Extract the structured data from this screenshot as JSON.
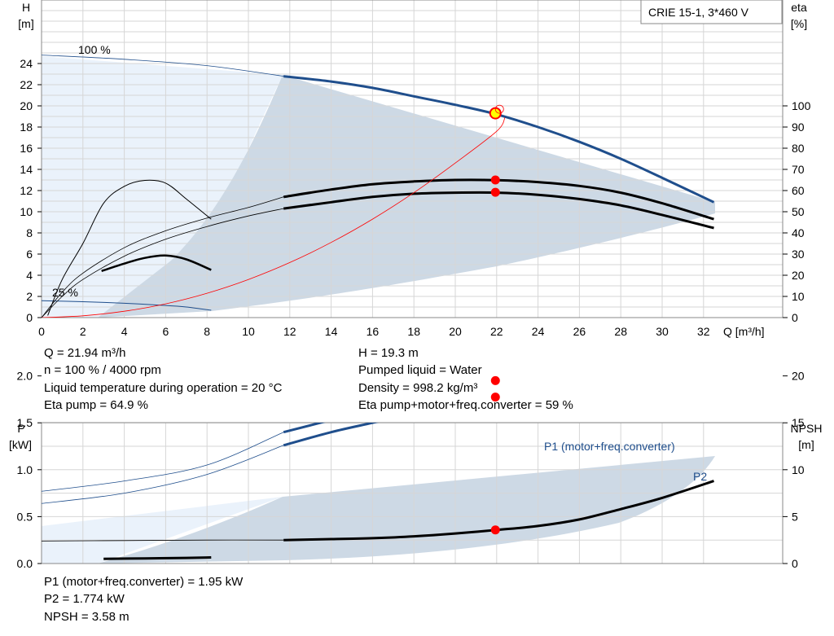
{
  "chart_data": [
    {
      "type": "line",
      "title": "CRIE 15-1, 3*460 V",
      "xlabel": "Q [m³/h]",
      "ylabel_left": {
        "name": "H",
        "unit": "[m]"
      },
      "ylabel_right": {
        "name": "eta",
        "unit": "[%]"
      },
      "xlim": [
        0,
        35
      ],
      "ylim_left": [
        0,
        25
      ],
      "ylim_right": [
        0,
        125
      ],
      "x_ticks": [
        0,
        2,
        4,
        6,
        8,
        10,
        12,
        14,
        16,
        18,
        20,
        22,
        24,
        26,
        28,
        30,
        32
      ],
      "y_ticks_left": [
        0,
        2,
        4,
        6,
        8,
        10,
        12,
        14,
        16,
        18,
        20,
        22,
        24
      ],
      "y_ticks_right": [
        0,
        10,
        20,
        30,
        40,
        50,
        60,
        70,
        80,
        90,
        100
      ],
      "grid": true,
      "curve_labels": {
        "full_speed": "100 %",
        "min_speed": "25 %"
      },
      "series": [
        {
          "name": "100 %",
          "axis": "left",
          "color": "#1f4e8c",
          "thick_from": 11.7,
          "points": [
            [
              0,
              24.8
            ],
            [
              4,
              24.4
            ],
            [
              8,
              23.8
            ],
            [
              11.7,
              22.8
            ],
            [
              14,
              22.3
            ],
            [
              16,
              21.7
            ],
            [
              18,
              20.9
            ],
            [
              20,
              20.1
            ],
            [
              22,
              19.2
            ],
            [
              24,
              18.0
            ],
            [
              26,
              16.6
            ],
            [
              28,
              15.0
            ],
            [
              30,
              13.2
            ],
            [
              32.5,
              10.9
            ]
          ]
        },
        {
          "name": "25 %",
          "axis": "left",
          "color": "#1f4e8c",
          "points": [
            [
              0,
              1.6
            ],
            [
              2,
              1.5
            ],
            [
              4,
              1.35
            ],
            [
              6,
              1.15
            ],
            [
              7,
              1.0
            ],
            [
              8.2,
              0.7
            ]
          ]
        },
        {
          "axis": "right",
          "color": "#000000",
          "thick_from": 11.7,
          "points": [
            [
              0,
              0
            ],
            [
              1,
              12
            ],
            [
              2,
              21
            ],
            [
              4,
              33
            ],
            [
              6,
              41
            ],
            [
              8,
              47
            ],
            [
              10,
              52
            ],
            [
              11.7,
              57
            ],
            [
              14,
              60.5
            ],
            [
              16,
              63
            ],
            [
              18,
              64.3
            ],
            [
              20,
              65
            ],
            [
              22,
              64.9
            ],
            [
              24,
              64
            ],
            [
              26,
              62.2
            ],
            [
              28,
              59
            ],
            [
              30,
              54
            ],
            [
              32.5,
              46.5
            ]
          ]
        },
        {
          "axis": "right",
          "color": "#000000",
          "width": 3,
          "thick_from": 11.7,
          "points": [
            [
              0,
              0
            ],
            [
              1,
              10
            ],
            [
              2,
              18
            ],
            [
              4,
              29
            ],
            [
              6,
              37
            ],
            [
              8,
              43
            ],
            [
              10,
              48
            ],
            [
              11.7,
              51.5
            ],
            [
              14,
              54.5
            ],
            [
              16,
              57
            ],
            [
              18,
              58.5
            ],
            [
              20,
              59
            ],
            [
              22,
              59
            ],
            [
              24,
              58
            ],
            [
              26,
              56
            ],
            [
              28,
              53
            ],
            [
              30,
              48.5
            ],
            [
              32.5,
              42.3
            ]
          ]
        },
        {
          "axis": "right",
          "color": "#000000",
          "points": [
            [
              0.3,
              1
            ],
            [
              1,
              18
            ],
            [
              2,
              35
            ],
            [
              3,
              54
            ],
            [
              4,
              62
            ],
            [
              5,
              64.8
            ],
            [
              6,
              63.5
            ],
            [
              7,
              56
            ],
            [
              8.2,
              46.5
            ]
          ]
        },
        {
          "axis": "right",
          "color": "#000000",
          "width": 2.5,
          "points": [
            [
              2.9,
              22
            ],
            [
              4,
              25.5
            ],
            [
              5,
              28.2
            ],
            [
              6,
              29.3
            ],
            [
              7,
              27.5
            ],
            [
              8.2,
              22.5
            ]
          ]
        },
        {
          "name": "system curve",
          "axis": "left",
          "color": "#ff0000",
          "points": [
            [
              0,
              0
            ],
            [
              2,
              0.17
            ],
            [
              4,
              0.6
            ],
            [
              6,
              1.3
            ],
            [
              8,
              2.3
            ],
            [
              10,
              3.6
            ],
            [
              12,
              5.2
            ],
            [
              14,
              7.1
            ],
            [
              16,
              9.3
            ],
            [
              18,
              11.8
            ],
            [
              20,
              14.6
            ],
            [
              22,
              17.6
            ],
            [
              22.4,
              18.9
            ]
          ]
        }
      ],
      "operating_point": {
        "x": 21.94,
        "y": 19.3
      },
      "eta_markers": [
        65,
        59.2
      ]
    },
    {
      "type": "line",
      "xlabel": "",
      "ylabel_left": {
        "name": "P",
        "unit": "[kW]"
      },
      "ylabel_right": {
        "name": "NPSH",
        "unit": "[m]"
      },
      "xlim": [
        0,
        35
      ],
      "ylim_left": [
        0,
        2.6
      ],
      "ylim_right": [
        0,
        26
      ],
      "y_ticks_left": [
        "0.0",
        "0.5",
        "1.0",
        "1.5",
        "2.0"
      ],
      "y_ticks_right": [
        0,
        5,
        10,
        15,
        20
      ],
      "grid": true,
      "series": [
        {
          "name": "P1 (motor+freq.converter)",
          "axis": "left",
          "color": "#1f4e8c",
          "thick_from": 11.7,
          "points": [
            [
              0,
              0.77
            ],
            [
              4,
              0.88
            ],
            [
              8,
              1.05
            ],
            [
              11.7,
              1.4
            ],
            [
              14,
              1.53
            ],
            [
              16,
              1.64
            ],
            [
              18,
              1.74
            ],
            [
              20,
              1.84
            ],
            [
              22,
              1.93
            ],
            [
              24,
              2.02
            ],
            [
              26,
              2.09
            ],
            [
              28,
              2.15
            ],
            [
              30,
              2.21
            ],
            [
              32.5,
              2.27
            ]
          ]
        },
        {
          "name": "P2",
          "axis": "left",
          "color": "#1f4e8c",
          "thick_from": 11.7,
          "points": [
            [
              0,
              0.64
            ],
            [
              4,
              0.75
            ],
            [
              8,
              0.95
            ],
            [
              11.7,
              1.26
            ],
            [
              14,
              1.4
            ],
            [
              16,
              1.5
            ],
            [
              18,
              1.6
            ],
            [
              20,
              1.69
            ],
            [
              22,
              1.77
            ],
            [
              24,
              1.85
            ],
            [
              26,
              1.91
            ],
            [
              28,
              1.96
            ],
            [
              30,
              2.01
            ],
            [
              32.5,
              2.07
            ]
          ]
        },
        {
          "name": "NPSH",
          "axis": "right",
          "color": "#000000",
          "width": 3,
          "thick_from": 11.7,
          "points": [
            [
              0,
              2.4
            ],
            [
              4,
              2.45
            ],
            [
              8,
              2.5
            ],
            [
              11.7,
              2.5
            ],
            [
              14,
              2.6
            ],
            [
              16,
              2.7
            ],
            [
              18,
              2.9
            ],
            [
              20,
              3.2
            ],
            [
              22,
              3.58
            ],
            [
              24,
              4.0
            ],
            [
              26,
              4.7
            ],
            [
              28,
              5.8
            ],
            [
              30,
              7.0
            ],
            [
              32.5,
              8.8
            ]
          ]
        },
        {
          "axis": "right",
          "color": "#000000",
          "width": 3,
          "points": [
            [
              3,
              0.5
            ],
            [
              5,
              0.55
            ],
            [
              7,
              0.6
            ],
            [
              8.2,
              0.65
            ]
          ]
        }
      ],
      "markers": [
        {
          "axis": "left",
          "x": 21.94,
          "y": 1.95
        },
        {
          "axis": "left",
          "x": 21.94,
          "y": 1.774
        },
        {
          "axis": "right",
          "x": 21.94,
          "y": 3.58
        }
      ]
    }
  ],
  "info_top_left": [
    "Q = 21.94 m³/h",
    "n = 100 % / 4000 rpm",
    "Liquid temperature during operation = 20 °C",
    "Eta pump = 64.9 %"
  ],
  "info_top_right": [
    "H = 19.3 m",
    "Pumped liquid = Water",
    "Density = 998.2 kg/m³",
    "Eta pump+motor+freq.converter = 59 %"
  ],
  "info_bottom": [
    "P1 (motor+freq.converter) = 1.95 kW",
    "P2 = 1.774 kW",
    "NPSH = 3.58 m"
  ],
  "colors": {
    "grid": "#d6d6d6",
    "frame": "#888888",
    "region_light": "#eaf2fb",
    "region_dark": "#cdd9e5",
    "curve_blue": "#1f4e8c",
    "marker_red": "#ff0000",
    "operating_point_fill": "#ffff00"
  }
}
